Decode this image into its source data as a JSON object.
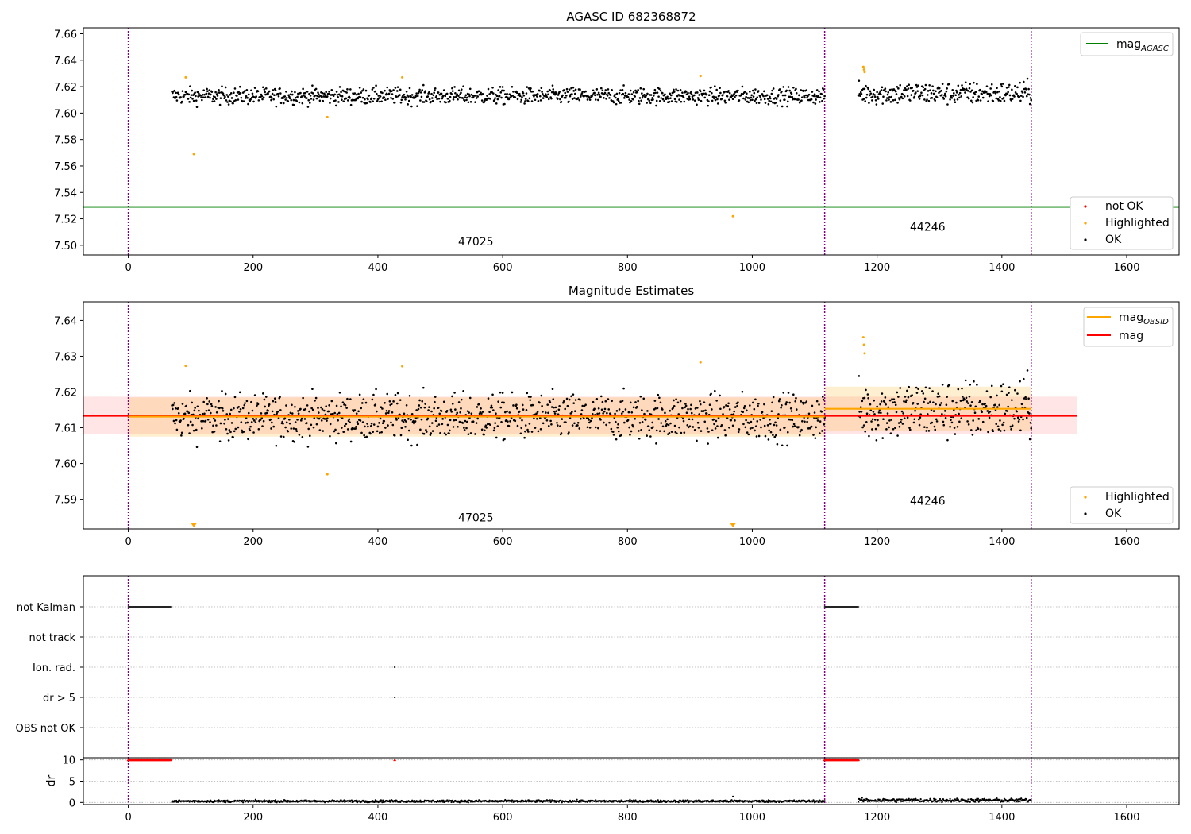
{
  "chart_data": [
    {
      "type": "scatter",
      "title": "AGASC ID 682368872",
      "xlabel": "",
      "ylabel": "",
      "xlim": [
        -72,
        1684
      ],
      "ylim": [
        7.4927,
        7.6645
      ],
      "x_ticks": [
        0,
        200,
        400,
        600,
        800,
        1000,
        1200,
        1400,
        1600
      ],
      "y_ticks": [
        7.5,
        7.52,
        7.54,
        7.56,
        7.58,
        7.6,
        7.62,
        7.64,
        7.66
      ],
      "x_tick_labels": [
        "0",
        "200",
        "400",
        "600",
        "800",
        "1000",
        "1200",
        "1400",
        "1600"
      ],
      "y_tick_labels": [
        "7.50",
        "7.52",
        "7.54",
        "7.56",
        "7.58",
        "7.60",
        "7.62",
        "7.64",
        "7.66"
      ],
      "grid": false,
      "obsid_boundaries": [
        0,
        1116,
        1447
      ],
      "obsid_labels": [
        {
          "text": "47025",
          "x": 557,
          "y": 7.5
        },
        {
          "text": "44246",
          "x": 1281,
          "y": 7.511
        }
      ],
      "mag_agasc": 7.529,
      "segments": [
        {
          "x_start": 70,
          "x_end": 1116,
          "center": 7.613,
          "spread": 0.0045
        },
        {
          "x_start": 1170,
          "x_end": 1447,
          "center": 7.615,
          "spread": 0.006
        }
      ],
      "highlighted": [
        {
          "x": 92,
          "y": 7.627
        },
        {
          "x": 105,
          "y": 7.569
        },
        {
          "x": 319,
          "y": 7.597
        },
        {
          "x": 439,
          "y": 7.627
        },
        {
          "x": 917,
          "y": 7.628
        },
        {
          "x": 969,
          "y": 7.522
        },
        {
          "x": 1178,
          "y": 7.635
        },
        {
          "x": 1179,
          "y": 7.633
        },
        {
          "x": 1180,
          "y": 7.631
        }
      ],
      "legend_top": [
        {
          "label": "mag",
          "subscript": "AGASC",
          "color": "#008000"
        }
      ],
      "legend_bottom": [
        {
          "label": "not OK",
          "color": "#ff0000"
        },
        {
          "label": "Highlighted",
          "color": "#ffa500"
        },
        {
          "label": "OK",
          "color": "#000000"
        }
      ]
    },
    {
      "type": "scatter",
      "title": "Magnitude Estimates",
      "xlabel": "",
      "ylabel": "",
      "xlim": [
        -72,
        1684
      ],
      "ylim": [
        7.5817,
        7.6452
      ],
      "x_ticks": [
        0,
        200,
        400,
        600,
        800,
        1000,
        1200,
        1400,
        1600
      ],
      "y_ticks": [
        7.59,
        7.6,
        7.61,
        7.62,
        7.63,
        7.64
      ],
      "x_tick_labels": [
        "0",
        "200",
        "400",
        "600",
        "800",
        "1000",
        "1200",
        "1400",
        "1600"
      ],
      "y_tick_labels": [
        "7.59",
        "7.60",
        "7.61",
        "7.62",
        "7.63",
        "7.64"
      ],
      "grid": false,
      "obsid_boundaries": [
        0,
        1116,
        1447
      ],
      "obsid_labels": [
        {
          "text": "47025",
          "x": 557,
          "y": 7.5838
        },
        {
          "text": "44246",
          "x": 1281,
          "y": 7.5885
        }
      ],
      "mag": {
        "value": 7.6133,
        "band": [
          7.6082,
          7.6187
        ],
        "x_range": [
          -72,
          1520
        ]
      },
      "mag_obsid": [
        {
          "x_range": [
            0,
            1116
          ],
          "value": 7.6131,
          "band": [
            7.6075,
            7.6185
          ]
        },
        {
          "x_range": [
            1116,
            1447
          ],
          "value": 7.6153,
          "band": [
            7.609,
            7.6215
          ]
        }
      ],
      "highlighted": [
        {
          "x": 92,
          "y": 7.6273
        },
        {
          "x": 319,
          "y": 7.597
        },
        {
          "x": 439,
          "y": 7.6272
        },
        {
          "x": 917,
          "y": 7.6283
        },
        {
          "x": 1178,
          "y": 7.6353
        },
        {
          "x": 1179,
          "y": 7.6332
        },
        {
          "x": 1180,
          "y": 7.6308
        }
      ],
      "off_scale_markers": [
        {
          "x": 105
        },
        {
          "x": 969
        }
      ],
      "legend_top": [
        {
          "label": "mag",
          "subscript": "OBSID",
          "color": "#ffa500"
        },
        {
          "label": "mag",
          "subscript": "",
          "color": "#ff0000"
        }
      ],
      "legend_bottom": [
        {
          "label": "Highlighted",
          "color": "#ffa500"
        },
        {
          "label": "OK",
          "color": "#000000"
        }
      ]
    },
    {
      "type": "scatter",
      "title": "",
      "xlim": [
        -72,
        1684
      ],
      "x_ticks": [
        0,
        200,
        400,
        600,
        800,
        1000,
        1200,
        1400,
        1600
      ],
      "x_tick_labels": [
        "0",
        "200",
        "400",
        "600",
        "800",
        "1000",
        "1200",
        "1400",
        "1600"
      ],
      "flags": [
        "not Kalman",
        "not track",
        "Ion. rad.",
        "dr > 5",
        "OBS not OK"
      ],
      "not_kalman_ranges": [
        [
          0,
          68
        ],
        [
          1116,
          1170
        ]
      ],
      "ion_rad_x": [
        427
      ],
      "dr_gt_5_x": [
        427
      ],
      "obsid_boundaries": [
        0,
        1116,
        1447
      ]
    },
    {
      "type": "scatter",
      "title": "",
      "ylabel": "dr",
      "xlim": [
        -72,
        1684
      ],
      "ylim": [
        -0.5,
        10.5
      ],
      "x_ticks": [
        0,
        200,
        400,
        600,
        800,
        1000,
        1200,
        1400,
        1600
      ],
      "x_tick_labels": [
        "0",
        "200",
        "400",
        "600",
        "800",
        "1000",
        "1200",
        "1400",
        "1600"
      ],
      "y_ticks": [
        0,
        5,
        10
      ],
      "y_tick_labels": [
        "0",
        "5",
        "10"
      ],
      "clipped_value": 10,
      "clipped_ranges": [
        [
          0,
          68
        ],
        [
          1116,
          1170
        ]
      ],
      "clipped_points_x": [
        427
      ],
      "segments": [
        {
          "x_start": 70,
          "x_end": 1116,
          "typical": 0.3
        },
        {
          "x_start": 1170,
          "x_end": 1447,
          "typical": 0.5
        }
      ],
      "outlier": {
        "x": 969,
        "y": 1.4
      }
    }
  ]
}
